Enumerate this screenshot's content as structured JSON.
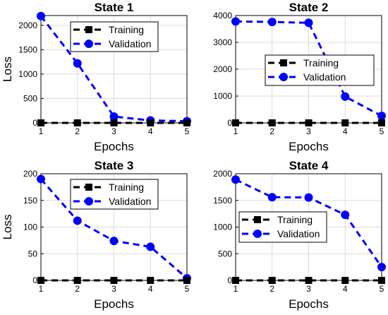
{
  "chart_data": [
    {
      "type": "line",
      "title": "State 1",
      "xlabel": "Epochs",
      "ylabel": "Loss",
      "x": [
        1,
        2,
        3,
        4,
        5
      ],
      "xlim": [
        1,
        5
      ],
      "ylim": [
        0,
        2200
      ],
      "yticks": [
        0,
        500,
        1000,
        1500,
        2000
      ],
      "grid": true,
      "legend_position": "top-right",
      "series": [
        {
          "name": "Training",
          "values": [
            0,
            0,
            0,
            0,
            0
          ],
          "color": "#000000",
          "marker": "square",
          "line": "dashed"
        },
        {
          "name": "Validation",
          "values": [
            2190,
            1220,
            130,
            50,
            35
          ],
          "color": "#0000ff",
          "marker": "circle",
          "line": "dashed"
        }
      ]
    },
    {
      "type": "line",
      "title": "State 2",
      "xlabel": "Epochs",
      "ylabel": "",
      "x": [
        1,
        2,
        3,
        4,
        5
      ],
      "xlim": [
        1,
        5
      ],
      "ylim": [
        0,
        4000
      ],
      "yticks": [
        0,
        1000,
        2000,
        3000,
        4000
      ],
      "grid": true,
      "legend_position": "center-right",
      "series": [
        {
          "name": "Training",
          "values": [
            0,
            0,
            0,
            0,
            0
          ],
          "color": "#000000",
          "marker": "square",
          "line": "dashed"
        },
        {
          "name": "Validation",
          "values": [
            3780,
            3760,
            3730,
            980,
            260
          ],
          "color": "#0000ff",
          "marker": "circle",
          "line": "dashed"
        }
      ]
    },
    {
      "type": "line",
      "title": "State 3",
      "xlabel": "Epochs",
      "ylabel": "Loss",
      "x": [
        1,
        2,
        3,
        4,
        5
      ],
      "xlim": [
        1,
        5
      ],
      "ylim": [
        0,
        200
      ],
      "yticks": [
        0,
        50,
        100,
        150,
        200
      ],
      "grid": true,
      "legend_position": "top-right",
      "series": [
        {
          "name": "Training",
          "values": [
            0,
            0,
            0,
            0,
            0
          ],
          "color": "#000000",
          "marker": "square",
          "line": "dashed"
        },
        {
          "name": "Validation",
          "values": [
            190,
            112,
            74,
            63,
            4
          ],
          "color": "#0000ff",
          "marker": "circle",
          "line": "dashed"
        }
      ]
    },
    {
      "type": "line",
      "title": "State 4",
      "xlabel": "Epochs",
      "ylabel": "",
      "x": [
        1,
        2,
        3,
        4,
        5
      ],
      "xlim": [
        1,
        5
      ],
      "ylim": [
        0,
        2000
      ],
      "yticks": [
        0,
        500,
        1000,
        1500,
        2000
      ],
      "grid": true,
      "legend_position": "center-left",
      "series": [
        {
          "name": "Training",
          "values": [
            0,
            0,
            0,
            0,
            0
          ],
          "color": "#000000",
          "marker": "square",
          "line": "dashed"
        },
        {
          "name": "Validation",
          "values": [
            1890,
            1560,
            1555,
            1230,
            250
          ],
          "color": "#0000ff",
          "marker": "circle",
          "line": "dashed"
        }
      ]
    }
  ]
}
